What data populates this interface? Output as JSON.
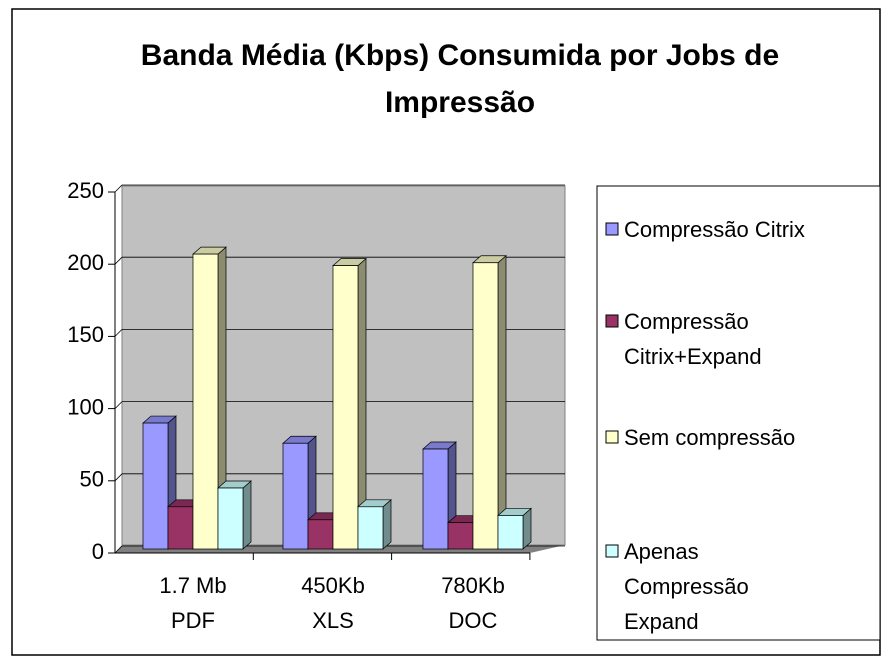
{
  "chart_data": {
    "type": "bar3d",
    "title": "Banda Média (Kbps) Consumida por Jobs de Impressão",
    "categories": [
      "1.7 Mb PDF",
      "450Kb XLS",
      "780Kb DOC"
    ],
    "series": [
      {
        "name": "Compressão Citrix",
        "color": "#9999ff",
        "values": [
          90,
          76,
          72
        ]
      },
      {
        "name": "Compressão Citrix+Expand",
        "color": "#993366",
        "values": [
          32,
          23,
          21
        ]
      },
      {
        "name": "Sem compressão",
        "color": "#ffffcc",
        "values": [
          207,
          199,
          201
        ]
      },
      {
        "name": "Apenas Compressão Expand",
        "color": "#ccffff",
        "values": [
          45,
          32,
          26
        ]
      }
    ],
    "ylim": [
      0,
      250
    ],
    "yticks": [
      0,
      50,
      100,
      150,
      200,
      250
    ],
    "grid": true,
    "legend": "right"
  }
}
